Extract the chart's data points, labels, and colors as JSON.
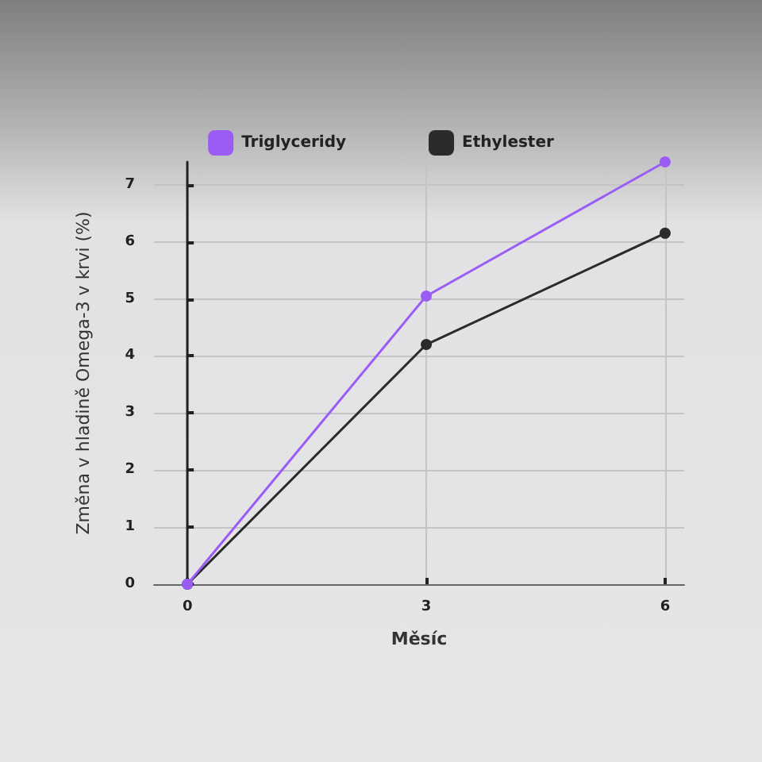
{
  "chart_data": {
    "type": "line",
    "xlabel": "Měsíc",
    "ylabel": "Změna v hladině Omega-3 v krvi (%)",
    "x": [
      0,
      3,
      6
    ],
    "series": [
      {
        "name": "Triglyceridy",
        "color": "#9b5cf6",
        "values": [
          0,
          5.05,
          7.4
        ]
      },
      {
        "name": "Ethylester",
        "color": "#2b2b2b",
        "values": [
          0,
          4.2,
          6.15
        ]
      }
    ],
    "xlim": [
      -0.42,
      6.24
    ],
    "xticks": [
      0,
      3,
      6
    ],
    "ylim": [
      0,
      7.4
    ],
    "yticks": [
      0,
      1,
      2,
      3,
      4,
      5,
      6,
      7
    ],
    "grid": true,
    "legend": "top",
    "marker": "circle",
    "line_style": "solid"
  }
}
